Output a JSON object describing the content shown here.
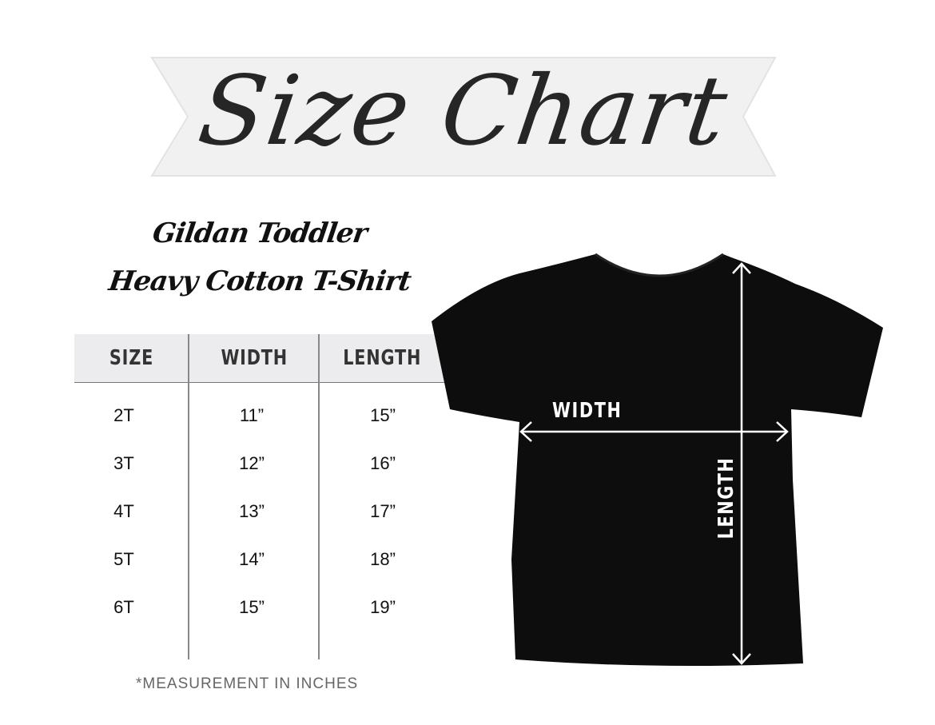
{
  "header": {
    "title": "Size Chart"
  },
  "product": {
    "line1": "Gildan Toddler",
    "line2": "Heavy Cotton T-Shirt"
  },
  "table": {
    "columns": [
      "SIZE",
      "WIDTH",
      "LENGTH"
    ],
    "rows": [
      [
        "2T",
        "11”",
        "15”"
      ],
      [
        "3T",
        "12”",
        "16”"
      ],
      [
        "4T",
        "13”",
        "17”"
      ],
      [
        "5T",
        "14”",
        "18”"
      ],
      [
        "6T",
        "15”",
        "19”"
      ]
    ]
  },
  "footnote": "*MEASUREMENT IN INCHES",
  "diagram": {
    "width_label": "WIDTH",
    "length_label": "LENGTH"
  },
  "colors": {
    "shirt": "#0d0d0d",
    "header_bg": "#ececee",
    "ribbon": "#f2f2f2"
  }
}
